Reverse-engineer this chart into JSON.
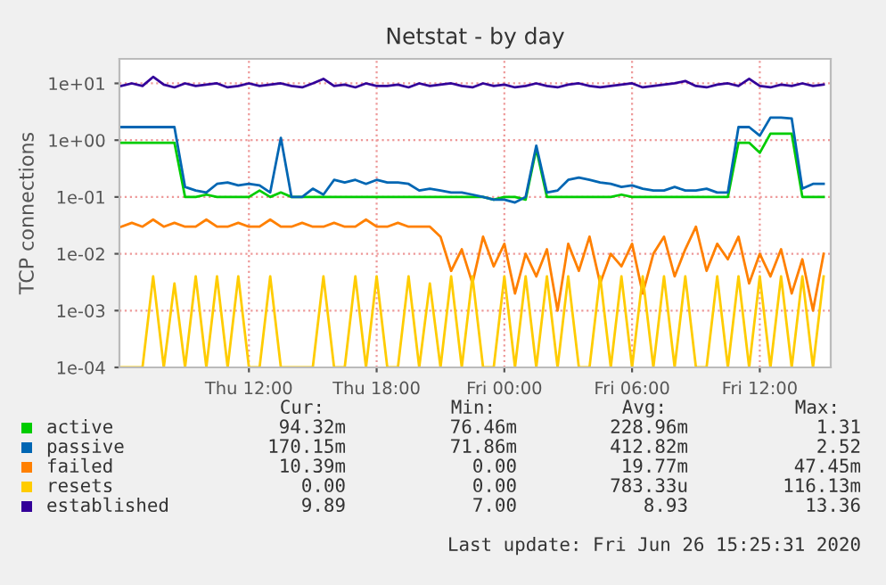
{
  "chart_data": {
    "type": "line",
    "title": "Netstat - by day",
    "ylabel": "TCP connections",
    "log": "y",
    "ylim": [
      0.0001,
      27
    ],
    "yticks": [
      {
        "value": 0.0001,
        "label": "1e-04"
      },
      {
        "value": 0.001,
        "label": "1e-03"
      },
      {
        "value": 0.01,
        "label": "1e-02"
      },
      {
        "value": 0.1,
        "label": "1e-01"
      },
      {
        "value": 1,
        "label": "1e+00"
      },
      {
        "value": 10,
        "label": "1e+01"
      }
    ],
    "xlim": [
      "2020-06-25T05:55",
      "2020-06-26T15:20"
    ],
    "xticks": [
      {
        "value": "2020-06-25T12:00",
        "label": "Thu 12:00"
      },
      {
        "value": "2020-06-25T18:00",
        "label": "Thu 18:00"
      },
      {
        "value": "2020-06-26T00:00",
        "label": "Fri 00:00"
      },
      {
        "value": "2020-06-26T06:00",
        "label": "Fri 06:00"
      },
      {
        "value": "2020-06-26T12:00",
        "label": "Fri 12:00"
      }
    ],
    "grid": true,
    "legend": "bottom",
    "line_style": "solid",
    "marker": "none",
    "x": [
      "2020-06-25T06:00",
      "2020-06-25T06:30",
      "2020-06-25T07:00",
      "2020-06-25T07:30",
      "2020-06-25T08:00",
      "2020-06-25T08:30",
      "2020-06-25T09:00",
      "2020-06-25T09:30",
      "2020-06-25T10:00",
      "2020-06-25T10:30",
      "2020-06-25T11:00",
      "2020-06-25T11:30",
      "2020-06-25T12:00",
      "2020-06-25T12:30",
      "2020-06-25T13:00",
      "2020-06-25T13:30",
      "2020-06-25T14:00",
      "2020-06-25T14:30",
      "2020-06-25T15:00",
      "2020-06-25T15:30",
      "2020-06-25T16:00",
      "2020-06-25T16:30",
      "2020-06-25T17:00",
      "2020-06-25T17:30",
      "2020-06-25T18:00",
      "2020-06-25T18:30",
      "2020-06-25T19:00",
      "2020-06-25T19:30",
      "2020-06-25T20:00",
      "2020-06-25T20:30",
      "2020-06-25T21:00",
      "2020-06-25T21:30",
      "2020-06-25T22:00",
      "2020-06-25T22:30",
      "2020-06-25T23:00",
      "2020-06-25T23:30",
      "2020-06-26T00:00",
      "2020-06-26T00:30",
      "2020-06-26T01:00",
      "2020-06-26T01:30",
      "2020-06-26T02:00",
      "2020-06-26T02:30",
      "2020-06-26T03:00",
      "2020-06-26T03:30",
      "2020-06-26T04:00",
      "2020-06-26T04:30",
      "2020-06-26T05:00",
      "2020-06-26T05:30",
      "2020-06-26T06:00",
      "2020-06-26T06:30",
      "2020-06-26T07:00",
      "2020-06-26T07:30",
      "2020-06-26T08:00",
      "2020-06-26T08:30",
      "2020-06-26T09:00",
      "2020-06-26T09:30",
      "2020-06-26T10:00",
      "2020-06-26T10:30",
      "2020-06-26T11:00",
      "2020-06-26T11:30",
      "2020-06-26T12:00",
      "2020-06-26T12:30",
      "2020-06-26T13:00",
      "2020-06-26T13:30",
      "2020-06-26T14:00",
      "2020-06-26T14:30",
      "2020-06-26T15:00"
    ],
    "series": [
      {
        "name": "active",
        "color": "#00cc00",
        "values": [
          0.9,
          0.9,
          0.9,
          0.9,
          0.9,
          0.9,
          0.1,
          0.1,
          0.11,
          0.1,
          0.1,
          0.1,
          0.1,
          0.13,
          0.1,
          0.12,
          0.1,
          0.1,
          0.1,
          0.1,
          0.1,
          0.1,
          0.1,
          0.1,
          0.1,
          0.1,
          0.1,
          0.1,
          0.1,
          0.1,
          0.1,
          0.1,
          0.1,
          0.1,
          0.1,
          0.09,
          0.1,
          0.1,
          0.09,
          0.7,
          0.1,
          0.1,
          0.1,
          0.1,
          0.1,
          0.1,
          0.1,
          0.11,
          0.1,
          0.1,
          0.1,
          0.1,
          0.1,
          0.1,
          0.1,
          0.1,
          0.1,
          0.1,
          0.9,
          0.9,
          0.6,
          1.3,
          1.3,
          1.3,
          0.1,
          0.1,
          0.1
        ]
      },
      {
        "name": "passive",
        "color": "#0066b3",
        "values": [
          1.7,
          1.7,
          1.7,
          1.7,
          1.7,
          1.7,
          0.15,
          0.13,
          0.12,
          0.17,
          0.18,
          0.16,
          0.17,
          0.16,
          0.12,
          1.1,
          0.1,
          0.1,
          0.14,
          0.11,
          0.2,
          0.18,
          0.2,
          0.17,
          0.2,
          0.18,
          0.18,
          0.17,
          0.13,
          0.14,
          0.13,
          0.12,
          0.12,
          0.11,
          0.1,
          0.09,
          0.09,
          0.08,
          0.1,
          0.8,
          0.12,
          0.13,
          0.2,
          0.22,
          0.2,
          0.18,
          0.17,
          0.15,
          0.16,
          0.14,
          0.13,
          0.13,
          0.15,
          0.13,
          0.13,
          0.14,
          0.12,
          0.12,
          1.7,
          1.7,
          1.2,
          2.5,
          2.5,
          2.4,
          0.14,
          0.17,
          0.17
        ]
      },
      {
        "name": "failed",
        "color": "#ff8000",
        "values": [
          0.03,
          0.035,
          0.03,
          0.04,
          0.03,
          0.035,
          0.03,
          0.03,
          0.04,
          0.03,
          0.03,
          0.035,
          0.03,
          0.03,
          0.04,
          0.03,
          0.03,
          0.035,
          0.03,
          0.03,
          0.035,
          0.03,
          0.03,
          0.04,
          0.03,
          0.03,
          0.035,
          0.03,
          0.03,
          0.03,
          0.02,
          0.005,
          0.012,
          0.003,
          0.02,
          0.006,
          0.015,
          0.002,
          0.01,
          0.004,
          0.012,
          0.001,
          0.015,
          0.005,
          0.02,
          0.003,
          0.01,
          0.006,
          0.015,
          0.002,
          0.01,
          0.02,
          0.004,
          0.012,
          0.03,
          0.005,
          0.015,
          0.008,
          0.02,
          0.003,
          0.01,
          0.004,
          0.012,
          0.002,
          0.008,
          0.001,
          0.01
        ]
      },
      {
        "name": "resets",
        "color": "#ffcc00",
        "values": [
          0.0001,
          0.0001,
          0.0001,
          0.004,
          0.0001,
          0.003,
          0.0001,
          0.004,
          0.0001,
          0.004,
          0.0001,
          0.004,
          0.0001,
          0.0001,
          0.004,
          0.0001,
          0.0001,
          0.0001,
          0.0001,
          0.004,
          0.0001,
          0.0001,
          0.004,
          0.0001,
          0.004,
          0.0001,
          0.0001,
          0.004,
          0.0001,
          0.003,
          0.0001,
          0.004,
          0.0001,
          0.004,
          0.0001,
          0.0001,
          0.004,
          0.0001,
          0.004,
          0.0001,
          0.004,
          0.0001,
          0.004,
          0.0001,
          0.0001,
          0.004,
          0.0001,
          0.004,
          0.0001,
          0.004,
          0.0001,
          0.004,
          0.0001,
          0.004,
          0.0001,
          0.0001,
          0.004,
          0.0001,
          0.004,
          0.0001,
          0.004,
          0.0001,
          0.004,
          0.0001,
          0.004,
          0.0001,
          0.004
        ]
      },
      {
        "name": "established",
        "color": "#330099",
        "values": [
          9,
          10,
          9,
          13,
          9.5,
          8.5,
          10,
          9,
          9.5,
          10,
          8.5,
          9,
          10,
          9,
          9.5,
          10,
          9,
          8.5,
          10,
          12,
          9,
          9.5,
          8.5,
          10,
          9,
          9,
          9.5,
          8.5,
          10,
          9,
          9.5,
          10,
          9,
          8.5,
          10,
          9,
          9.5,
          8.5,
          9,
          10,
          9,
          8.5,
          9.5,
          10,
          9,
          8.5,
          9,
          9.5,
          10,
          8.5,
          9,
          9.5,
          10,
          11,
          9,
          8.5,
          9.5,
          10,
          9,
          12,
          9,
          8.5,
          9.5,
          9,
          10,
          9,
          9.5
        ]
      }
    ],
    "annotations": [
      "Cur:",
      "Min:",
      "Avg:",
      "Max:",
      "94.32m",
      "76.46m",
      "228.96m",
      "1.31",
      "170.15m",
      "71.86m",
      "412.82m",
      "2.52",
      "10.39m",
      "0.00",
      "19.77m",
      "47.45m",
      "0.00",
      "0.00",
      "783.33u",
      "116.13m",
      "9.89",
      "7.00",
      "8.93",
      "13.36",
      "Last update: Fri Jun 26 15:25:31 2020"
    ]
  }
}
